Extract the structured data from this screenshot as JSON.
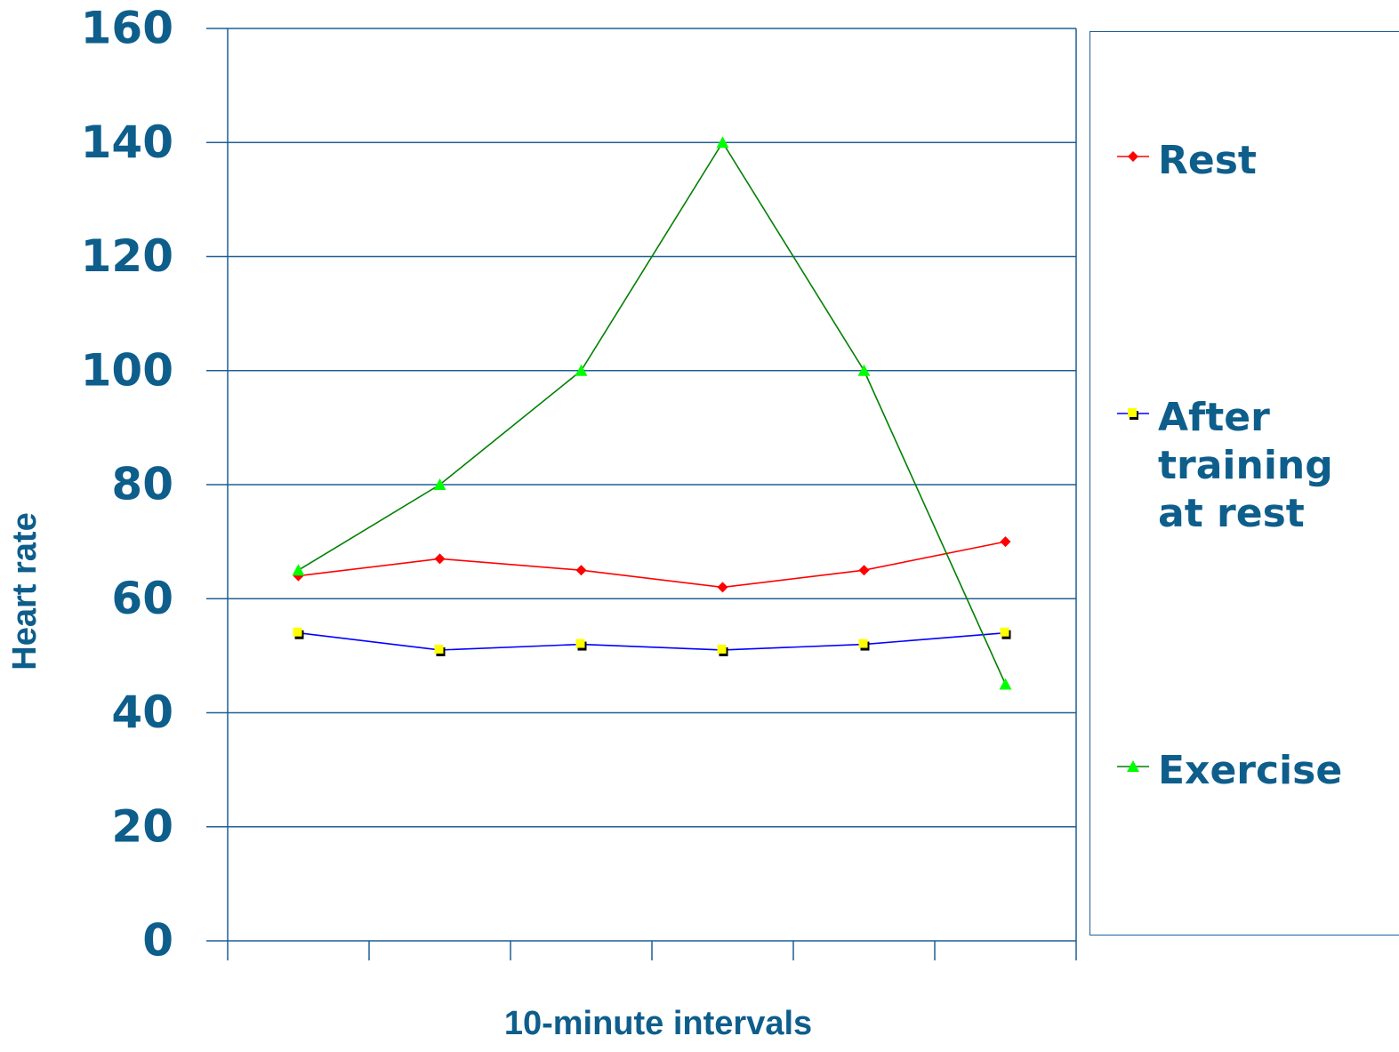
{
  "chart_data": {
    "type": "line",
    "y_label": "Heart rate",
    "x_label": "10-minute intervals",
    "categories": [
      null,
      null,
      null,
      null,
      null,
      null
    ],
    "series": [
      {
        "name": "Rest",
        "color": "#ff0000",
        "marker": "diamond",
        "marker_color": "#ff0000",
        "values": [
          64,
          67,
          65,
          62,
          65,
          70
        ]
      },
      {
        "name": "After training at rest",
        "color": "#0000ff",
        "marker": "square",
        "marker_color": "#ffff00",
        "values": [
          54,
          51,
          52,
          51,
          52,
          54
        ]
      },
      {
        "name": "Exercise",
        "color": "#008000",
        "marker": "triangle",
        "marker_color": "#00ff00",
        "values": [
          65,
          80,
          100,
          140,
          100,
          45
        ]
      }
    ],
    "ylim": [
      0,
      160
    ],
    "yticks": [
      0,
      20,
      40,
      60,
      80,
      100,
      120,
      140,
      160
    ],
    "grid": true,
    "legend": "right"
  }
}
